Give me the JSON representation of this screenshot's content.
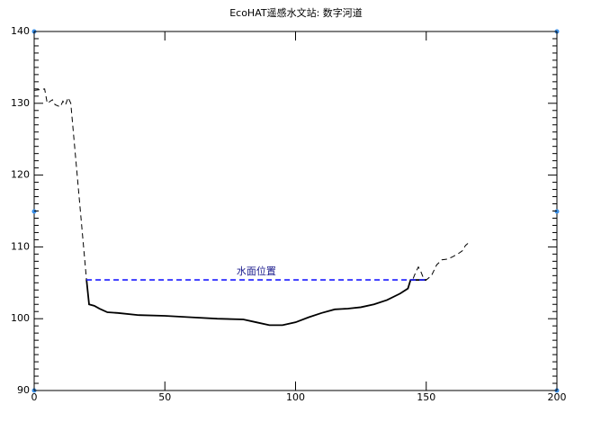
{
  "chart_data": {
    "type": "line",
    "title": "EcoHAT遥感水文站: 数字河道",
    "series": [
      {
        "color": "#000000",
        "dashed": true,
        "x": [
          0,
          4,
          5,
          7,
          8,
          10,
          11,
          12,
          13,
          14,
          20
        ],
        "values": [
          131.8,
          132,
          130,
          130.5,
          129.8,
          129.5,
          130.3,
          129.8,
          130.8,
          130,
          105.5
        ]
      },
      {
        "color": "#000000",
        "dashed": false,
        "x": [
          20,
          21,
          23,
          25,
          28,
          32,
          40,
          50,
          60,
          70,
          80,
          85,
          90,
          95,
          100,
          105,
          110,
          115,
          120,
          125,
          130,
          135,
          140,
          143,
          144,
          150
        ],
        "values": [
          105.5,
          102,
          101.8,
          101.4,
          100.9,
          100.8,
          100.5,
          100.4,
          100.2,
          100,
          99.9,
          99.5,
          99.1,
          99.1,
          99.5,
          100.2,
          100.8,
          101.3,
          101.4,
          101.6,
          102,
          102.6,
          103.5,
          104.2,
          105.4,
          105.4
        ]
      },
      {
        "color": "#000000",
        "dashed": true,
        "x": [
          145,
          146,
          147,
          148,
          149,
          150,
          152,
          154,
          156,
          158,
          160,
          162,
          164,
          165,
          166
        ],
        "values": [
          105.6,
          106.5,
          107.2,
          106.5,
          105.6,
          105.4,
          106,
          107.5,
          108.2,
          108.3,
          108.6,
          109,
          109.5,
          110.2,
          110.5
        ]
      },
      {
        "color": "#1a1aff",
        "dashed": true,
        "x": [
          20,
          150
        ],
        "values": [
          105.4,
          105.4
        ]
      }
    ],
    "annotation": "水面位置",
    "xlim": [
      0,
      200
    ],
    "xticks": [
      0,
      50,
      100,
      150,
      200
    ],
    "ylim": [
      90,
      140
    ],
    "yticks": [
      90,
      100,
      110,
      120,
      130,
      140
    ]
  }
}
